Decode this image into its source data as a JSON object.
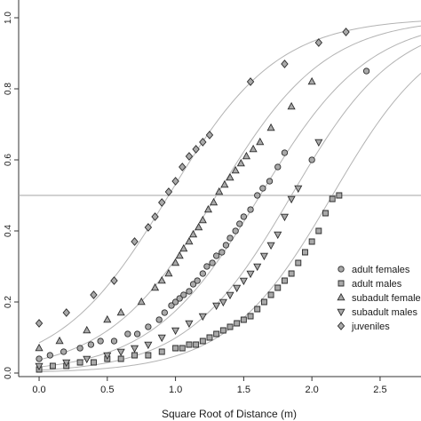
{
  "chart_data": {
    "type": "scatter",
    "xlabel": "Square Root of Distance (m)",
    "ylabel": "",
    "xlim": [
      -0.15,
      2.8
    ],
    "ylim": [
      -0.01,
      1.05
    ],
    "x_ticks": [
      "0.0",
      "0.5",
      "1.0",
      "1.5",
      "2.0",
      "2.5"
    ],
    "y_ticks": [
      "0.0",
      "0.2",
      "0.4",
      "0.6",
      "0.8",
      "1.0"
    ],
    "reference_line_y": 0.5,
    "grid": false,
    "legend_position": "right",
    "series": [
      {
        "name": "adult females",
        "marker": "circle",
        "curve_midpoint": 1.62,
        "curve_steepness": 2.5,
        "points": [
          {
            "x": 0.0,
            "y": 0.04
          },
          {
            "x": 0.08,
            "y": 0.05
          },
          {
            "x": 0.18,
            "y": 0.06
          },
          {
            "x": 0.3,
            "y": 0.07
          },
          {
            "x": 0.38,
            "y": 0.08
          },
          {
            "x": 0.45,
            "y": 0.09
          },
          {
            "x": 0.55,
            "y": 0.09
          },
          {
            "x": 0.65,
            "y": 0.11
          },
          {
            "x": 0.72,
            "y": 0.11
          },
          {
            "x": 0.8,
            "y": 0.13
          },
          {
            "x": 0.88,
            "y": 0.15
          },
          {
            "x": 0.92,
            "y": 0.17
          },
          {
            "x": 0.97,
            "y": 0.19
          },
          {
            "x": 1.0,
            "y": 0.2
          },
          {
            "x": 1.03,
            "y": 0.21
          },
          {
            "x": 1.06,
            "y": 0.22
          },
          {
            "x": 1.1,
            "y": 0.23
          },
          {
            "x": 1.13,
            "y": 0.25
          },
          {
            "x": 1.16,
            "y": 0.26
          },
          {
            "x": 1.2,
            "y": 0.28
          },
          {
            "x": 1.23,
            "y": 0.3
          },
          {
            "x": 1.27,
            "y": 0.31
          },
          {
            "x": 1.3,
            "y": 0.33
          },
          {
            "x": 1.34,
            "y": 0.34
          },
          {
            "x": 1.37,
            "y": 0.36
          },
          {
            "x": 1.4,
            "y": 0.38
          },
          {
            "x": 1.44,
            "y": 0.4
          },
          {
            "x": 1.47,
            "y": 0.42
          },
          {
            "x": 1.5,
            "y": 0.44
          },
          {
            "x": 1.55,
            "y": 0.46
          },
          {
            "x": 1.6,
            "y": 0.5
          },
          {
            "x": 1.64,
            "y": 0.52
          },
          {
            "x": 1.69,
            "y": 0.54
          },
          {
            "x": 1.75,
            "y": 0.58
          },
          {
            "x": 1.8,
            "y": 0.62
          },
          {
            "x": 2.0,
            "y": 0.6
          },
          {
            "x": 2.4,
            "y": 0.85
          }
        ]
      },
      {
        "name": "adult males",
        "marker": "square",
        "curve_midpoint": 2.15,
        "curve_steepness": 2.6,
        "points": [
          {
            "x": 0.0,
            "y": 0.01
          },
          {
            "x": 0.1,
            "y": 0.02
          },
          {
            "x": 0.2,
            "y": 0.02
          },
          {
            "x": 0.3,
            "y": 0.03
          },
          {
            "x": 0.4,
            "y": 0.03
          },
          {
            "x": 0.5,
            "y": 0.04
          },
          {
            "x": 0.6,
            "y": 0.04
          },
          {
            "x": 0.7,
            "y": 0.05
          },
          {
            "x": 0.8,
            "y": 0.05
          },
          {
            "x": 0.9,
            "y": 0.06
          },
          {
            "x": 1.0,
            "y": 0.07
          },
          {
            "x": 1.05,
            "y": 0.07
          },
          {
            "x": 1.1,
            "y": 0.08
          },
          {
            "x": 1.15,
            "y": 0.08
          },
          {
            "x": 1.2,
            "y": 0.09
          },
          {
            "x": 1.25,
            "y": 0.1
          },
          {
            "x": 1.3,
            "y": 0.11
          },
          {
            "x": 1.35,
            "y": 0.12
          },
          {
            "x": 1.4,
            "y": 0.13
          },
          {
            "x": 1.45,
            "y": 0.14
          },
          {
            "x": 1.5,
            "y": 0.15
          },
          {
            "x": 1.55,
            "y": 0.16
          },
          {
            "x": 1.6,
            "y": 0.18
          },
          {
            "x": 1.65,
            "y": 0.2
          },
          {
            "x": 1.7,
            "y": 0.22
          },
          {
            "x": 1.75,
            "y": 0.24
          },
          {
            "x": 1.8,
            "y": 0.26
          },
          {
            "x": 1.85,
            "y": 0.28
          },
          {
            "x": 1.9,
            "y": 0.31
          },
          {
            "x": 1.95,
            "y": 0.34
          },
          {
            "x": 2.0,
            "y": 0.37
          },
          {
            "x": 2.05,
            "y": 0.4
          },
          {
            "x": 2.1,
            "y": 0.45
          },
          {
            "x": 2.15,
            "y": 0.49
          },
          {
            "x": 2.2,
            "y": 0.5
          }
        ]
      },
      {
        "name": "subadult females",
        "marker": "triangle-up",
        "curve_midpoint": 1.3,
        "curve_steepness": 2.5,
        "points": [
          {
            "x": 0.0,
            "y": 0.07
          },
          {
            "x": 0.15,
            "y": 0.09
          },
          {
            "x": 0.35,
            "y": 0.12
          },
          {
            "x": 0.5,
            "y": 0.15
          },
          {
            "x": 0.6,
            "y": 0.17
          },
          {
            "x": 0.75,
            "y": 0.2
          },
          {
            "x": 0.85,
            "y": 0.24
          },
          {
            "x": 0.9,
            "y": 0.26
          },
          {
            "x": 0.95,
            "y": 0.28
          },
          {
            "x": 1.0,
            "y": 0.31
          },
          {
            "x": 1.03,
            "y": 0.33
          },
          {
            "x": 1.06,
            "y": 0.35
          },
          {
            "x": 1.1,
            "y": 0.37
          },
          {
            "x": 1.13,
            "y": 0.39
          },
          {
            "x": 1.17,
            "y": 0.41
          },
          {
            "x": 1.2,
            "y": 0.43
          },
          {
            "x": 1.24,
            "y": 0.46
          },
          {
            "x": 1.28,
            "y": 0.48
          },
          {
            "x": 1.32,
            "y": 0.51
          },
          {
            "x": 1.36,
            "y": 0.53
          },
          {
            "x": 1.4,
            "y": 0.55
          },
          {
            "x": 1.44,
            "y": 0.57
          },
          {
            "x": 1.48,
            "y": 0.59
          },
          {
            "x": 1.52,
            "y": 0.61
          },
          {
            "x": 1.57,
            "y": 0.63
          },
          {
            "x": 1.62,
            "y": 0.65
          },
          {
            "x": 1.7,
            "y": 0.69
          },
          {
            "x": 1.85,
            "y": 0.75
          },
          {
            "x": 2.0,
            "y": 0.82
          }
        ]
      },
      {
        "name": "subadult males",
        "marker": "triangle-down",
        "curve_midpoint": 1.85,
        "curve_steepness": 2.6,
        "points": [
          {
            "x": 0.0,
            "y": 0.02
          },
          {
            "x": 0.2,
            "y": 0.03
          },
          {
            "x": 0.35,
            "y": 0.04
          },
          {
            "x": 0.5,
            "y": 0.05
          },
          {
            "x": 0.6,
            "y": 0.06
          },
          {
            "x": 0.7,
            "y": 0.07
          },
          {
            "x": 0.8,
            "y": 0.08
          },
          {
            "x": 0.9,
            "y": 0.1
          },
          {
            "x": 1.0,
            "y": 0.12
          },
          {
            "x": 1.1,
            "y": 0.14
          },
          {
            "x": 1.2,
            "y": 0.16
          },
          {
            "x": 1.3,
            "y": 0.19
          },
          {
            "x": 1.35,
            "y": 0.2
          },
          {
            "x": 1.4,
            "y": 0.22
          },
          {
            "x": 1.45,
            "y": 0.24
          },
          {
            "x": 1.5,
            "y": 0.26
          },
          {
            "x": 1.55,
            "y": 0.28
          },
          {
            "x": 1.6,
            "y": 0.3
          },
          {
            "x": 1.65,
            "y": 0.33
          },
          {
            "x": 1.7,
            "y": 0.36
          },
          {
            "x": 1.75,
            "y": 0.39
          },
          {
            "x": 1.8,
            "y": 0.44
          },
          {
            "x": 1.85,
            "y": 0.49
          },
          {
            "x": 1.9,
            "y": 0.52
          },
          {
            "x": 2.05,
            "y": 0.65
          }
        ]
      },
      {
        "name": "juveniles",
        "marker": "diamond",
        "curve_midpoint": 0.95,
        "curve_steepness": 2.5,
        "points": [
          {
            "x": 0.0,
            "y": 0.14
          },
          {
            "x": 0.2,
            "y": 0.17
          },
          {
            "x": 0.4,
            "y": 0.22
          },
          {
            "x": 0.55,
            "y": 0.26
          },
          {
            "x": 0.7,
            "y": 0.37
          },
          {
            "x": 0.8,
            "y": 0.41
          },
          {
            "x": 0.85,
            "y": 0.44
          },
          {
            "x": 0.9,
            "y": 0.48
          },
          {
            "x": 0.95,
            "y": 0.51
          },
          {
            "x": 1.0,
            "y": 0.54
          },
          {
            "x": 1.05,
            "y": 0.58
          },
          {
            "x": 1.1,
            "y": 0.61
          },
          {
            "x": 1.15,
            "y": 0.63
          },
          {
            "x": 1.2,
            "y": 0.65
          },
          {
            "x": 1.25,
            "y": 0.67
          },
          {
            "x": 1.55,
            "y": 0.82
          },
          {
            "x": 1.8,
            "y": 0.87
          },
          {
            "x": 2.05,
            "y": 0.93
          },
          {
            "x": 2.25,
            "y": 0.96
          }
        ]
      }
    ]
  },
  "colors": {
    "marker_fill": "#a9a9a9",
    "marker_stroke": "#2b2b2b",
    "curve": "#b3b3b3",
    "axis": "#333333",
    "reference_line": "#a6a6a6"
  }
}
